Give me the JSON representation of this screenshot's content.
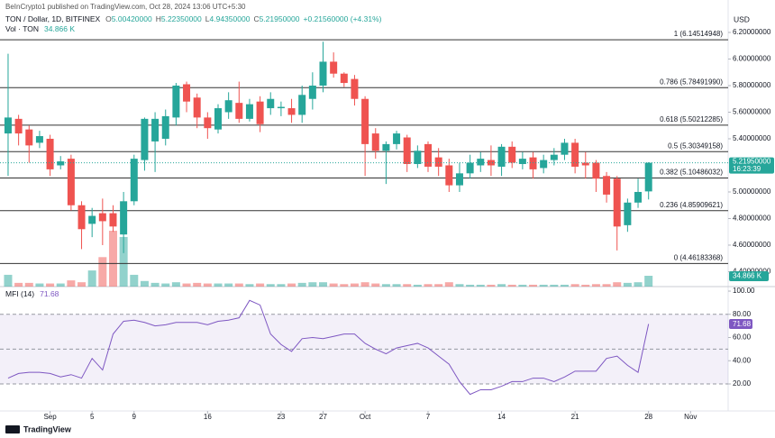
{
  "header": {
    "published": "BeInCrypto1 published on TradingView.com, Oct 28, 2024 13:06 UTC+5:30",
    "symbol": "TON / Dollar, 1D, BITFINEX",
    "ohlc": [
      {
        "label": "O",
        "value": "5.00420000"
      },
      {
        "label": "H",
        "value": "5.22350000"
      },
      {
        "label": "L",
        "value": "4.94350000"
      },
      {
        "label": "C",
        "value": "5.21950000"
      }
    ],
    "change": "+0.21560000 (+4.31%)",
    "volume_title": "Vol · TON",
    "volume_value": "34.866 K",
    "currency": "USD",
    "countdown": "16:23:39",
    "logo": "TradingView"
  },
  "chart_data": [
    {
      "type": "candlestick",
      "up_color": "#26a69a",
      "down_color": "#ef5350",
      "open": [
        5.44,
        5.55,
        5.47,
        5.37,
        5.4,
        5.2,
        5.25,
        4.9,
        4.76,
        4.84,
        4.84,
        4.68,
        4.93,
        5.24,
        5.38,
        5.4,
        5.56,
        5.81,
        5.71,
        5.56,
        5.47,
        5.6,
        5.67,
        5.55,
        5.68,
        5.63,
        5.63,
        5.63,
        5.58,
        5.7,
        5.8,
        5.98,
        5.89,
        5.85,
        5.7,
        5.44,
        5.31,
        5.36,
        5.41,
        5.21,
        5.36,
        5.26,
        5.2,
        5.05,
        5.14,
        5.2,
        5.24,
        5.19,
        5.34,
        5.21,
        5.26,
        5.18,
        5.24,
        5.28,
        5.37,
        5.22,
        5.22,
        5.12,
        5.1,
        4.75,
        4.92,
        5.0042
      ],
      "high": [
        6.04,
        5.58,
        5.5,
        5.46,
        5.43,
        5.27,
        5.28,
        4.93,
        4.88,
        4.95,
        4.9,
        5.0,
        5.28,
        5.56,
        5.6,
        5.62,
        5.82,
        5.83,
        5.74,
        5.6,
        5.66,
        5.75,
        5.83,
        5.7,
        5.72,
        5.75,
        5.68,
        5.7,
        5.8,
        5.9,
        6.13,
        6.05,
        5.9,
        5.88,
        5.72,
        5.48,
        5.38,
        5.46,
        5.43,
        5.35,
        5.38,
        5.33,
        5.25,
        5.22,
        5.28,
        5.3,
        5.35,
        5.36,
        5.38,
        5.3,
        5.3,
        5.28,
        5.33,
        5.4,
        5.4,
        5.3,
        5.24,
        5.15,
        5.12,
        4.95,
        5.1,
        5.2235
      ],
      "low": [
        5.12,
        5.35,
        5.22,
        5.33,
        5.12,
        5.17,
        4.86,
        4.57,
        4.66,
        4.6,
        4.7,
        4.54,
        4.9,
        5.16,
        5.15,
        5.35,
        5.5,
        5.6,
        5.48,
        5.4,
        5.44,
        5.55,
        5.52,
        5.53,
        5.45,
        5.58,
        5.57,
        5.52,
        5.52,
        5.62,
        5.75,
        5.86,
        5.79,
        5.65,
        5.12,
        5.25,
        5.06,
        5.32,
        5.15,
        5.18,
        5.15,
        5.12,
        5.0,
        5.0,
        5.1,
        5.15,
        5.12,
        5.12,
        5.18,
        5.17,
        5.1,
        5.14,
        5.2,
        5.24,
        5.14,
        5.1,
        5.0,
        4.92,
        4.56,
        4.7,
        4.88,
        4.9435
      ],
      "close": [
        5.56,
        5.44,
        5.35,
        5.42,
        5.17,
        5.23,
        4.9,
        4.72,
        4.82,
        4.78,
        4.74,
        4.93,
        5.25,
        5.55,
        5.55,
        5.57,
        5.8,
        5.68,
        5.56,
        5.48,
        5.63,
        5.69,
        5.55,
        5.66,
        5.51,
        5.7,
        5.64,
        5.58,
        5.73,
        5.8,
        5.98,
        5.89,
        5.82,
        5.7,
        5.36,
        5.31,
        5.36,
        5.44,
        5.21,
        5.31,
        5.19,
        5.19,
        5.05,
        5.14,
        5.22,
        5.25,
        5.2,
        5.34,
        5.22,
        5.25,
        5.17,
        5.24,
        5.28,
        5.37,
        5.19,
        5.2,
        5.1,
        4.98,
        4.74,
        4.92,
        5.0,
        5.2195
      ],
      "last_price_label": "5.21950000",
      "xlim": [
        -0.77,
        68.58
      ],
      "xticks": [
        {
          "value": 4,
          "label": "Sep"
        },
        {
          "value": 8,
          "label": "5"
        },
        {
          "value": 12,
          "label": "9"
        },
        {
          "value": 19,
          "label": "16"
        },
        {
          "value": 26,
          "label": "23"
        },
        {
          "value": 30,
          "label": "27"
        },
        {
          "value": 34,
          "label": "Oct"
        },
        {
          "value": 40,
          "label": "7"
        },
        {
          "value": 47,
          "label": "14"
        },
        {
          "value": 54,
          "label": "21"
        },
        {
          "value": 61,
          "label": "28"
        },
        {
          "value": 65,
          "label": "Nov"
        }
      ],
      "ylim": [
        4.288,
        6.444
      ],
      "yticks": [
        {
          "value": 6.2,
          "label": "6.20000000"
        },
        {
          "value": 6.0,
          "label": "6.00000000"
        },
        {
          "value": 5.8,
          "label": "5.80000000"
        },
        {
          "value": 5.6,
          "label": "5.60000000"
        },
        {
          "value": 5.4,
          "label": "5.40000000"
        },
        {
          "value": 5.0,
          "label": "5.00000000"
        },
        {
          "value": 4.8,
          "label": "4.80000000"
        },
        {
          "value": 4.6,
          "label": "4.60000000"
        },
        {
          "value": 4.4,
          "label": "4.40000000"
        }
      ],
      "fib": {
        "color": "#333333",
        "values": [
          6.14514948,
          5.7849199,
          5.50212285,
          5.30349158,
          5.10486032,
          4.85909621,
          4.46183368
        ],
        "value_labels": [
          "1 (6.14514948)",
          "0.786 (5.78491990)",
          "0.618 (5.50212285)",
          "0.5 (5.30349158)",
          "0.382 (5.10486032)",
          "0.236 (4.85909621)",
          "0 (4.46183368)"
        ]
      },
      "volume": {
        "ylim": [
          0,
          924
        ],
        "values": [
          38,
          12,
          12,
          10,
          10,
          10,
          20,
          14,
          52,
          95,
          180,
          160,
          38,
          18,
          12,
          10,
          14,
          10,
          12,
          10,
          10,
          10,
          10,
          8,
          10,
          8,
          8,
          10,
          12,
          14,
          14,
          10,
          8,
          10,
          14,
          10,
          8,
          8,
          8,
          6,
          8,
          8,
          14,
          8,
          6,
          6,
          6,
          8,
          6,
          6,
          6,
          6,
          6,
          6,
          8,
          6,
          8,
          8,
          14,
          12,
          14,
          34.866
        ]
      }
    },
    {
      "type": "line",
      "title": "MFI (14)",
      "value_label": "71.68",
      "color": "#7e57c2",
      "values": [
        25,
        29,
        30,
        30,
        29,
        26,
        28,
        25,
        42,
        32,
        63,
        74,
        75,
        73,
        70,
        71,
        73,
        73,
        73,
        71,
        74,
        75,
        77,
        92,
        88,
        63,
        54,
        48,
        59,
        60,
        59,
        61,
        63,
        63,
        55,
        50,
        46,
        51,
        53,
        55,
        51,
        44,
        37,
        22,
        11,
        15,
        15,
        18,
        22,
        22,
        25,
        25,
        22,
        26,
        31,
        31,
        31,
        42,
        44,
        36,
        30,
        71.68
      ],
      "ylim": [
        -3.3,
        103.9
      ],
      "yticks": [
        {
          "value": 100,
          "label": "100.00"
        },
        {
          "value": 80,
          "label": "80.00"
        },
        {
          "value": 60,
          "label": "60.00"
        },
        {
          "value": 40,
          "label": "40.00"
        },
        {
          "value": 20,
          "label": "20.00"
        }
      ],
      "levels": [
        80,
        50,
        20
      ]
    }
  ]
}
